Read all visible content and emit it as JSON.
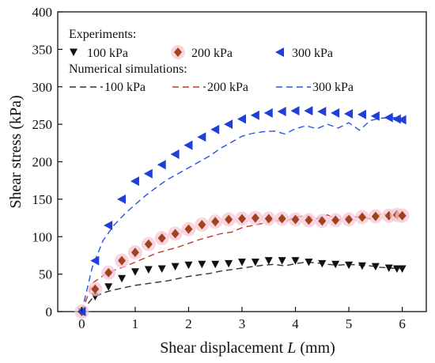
{
  "chart_data": {
    "type": "scatter",
    "xlabel_prefix": "Shear displacement ",
    "xlabel_var": "L",
    "xlabel_suffix": " (mm)",
    "ylabel": "Shear stress (kPa)",
    "xlim": [
      -0.45,
      6.45
    ],
    "ylim": [
      0,
      400
    ],
    "xticks": [
      0,
      1,
      2,
      3,
      4,
      5,
      6
    ],
    "yticks": [
      0,
      50,
      100,
      150,
      200,
      250,
      300,
      350,
      400
    ],
    "grid": false,
    "legend": {
      "placement": "top-left",
      "experiments_header": "Experiments:",
      "simulations_header": "Numerical simulations:"
    },
    "experiments": [
      {
        "name": "100 kPa",
        "marker": "triangle-down",
        "color": "#111111",
        "x": [
          0,
          0.25,
          0.5,
          0.75,
          1.0,
          1.25,
          1.5,
          1.75,
          2.0,
          2.25,
          2.5,
          2.75,
          3.0,
          3.25,
          3.5,
          3.75,
          4.0,
          4.25,
          4.5,
          4.75,
          5.0,
          5.25,
          5.5,
          5.75,
          5.9,
          6.0
        ],
        "y": [
          0,
          20,
          33,
          44,
          53,
          56,
          57,
          60,
          62,
          63,
          63,
          64,
          66,
          66,
          68,
          68,
          68,
          66,
          64,
          63,
          62,
          61,
          60,
          58,
          57,
          57
        ]
      },
      {
        "name": "200 kPa",
        "marker": "diamond",
        "color": "#a0421e",
        "x": [
          0,
          0.25,
          0.5,
          0.75,
          1.0,
          1.25,
          1.5,
          1.75,
          2.0,
          2.25,
          2.5,
          2.75,
          3.0,
          3.25,
          3.5,
          3.75,
          4.0,
          4.25,
          4.5,
          4.75,
          5.0,
          5.25,
          5.5,
          5.75,
          5.9,
          6.0
        ],
        "y": [
          0,
          30,
          52,
          68,
          79,
          90,
          98,
          104,
          110,
          116,
          120,
          123,
          124,
          125,
          124,
          124,
          123,
          122,
          121,
          122,
          123,
          126,
          127,
          128,
          129,
          128
        ]
      },
      {
        "name": "300 kPa",
        "marker": "triangle-left",
        "color": "#1f3fd6",
        "x": [
          0,
          0.25,
          0.5,
          0.75,
          1.0,
          1.25,
          1.5,
          1.75,
          2.0,
          2.25,
          2.5,
          2.75,
          3.0,
          3.25,
          3.5,
          3.75,
          4.0,
          4.25,
          4.5,
          4.75,
          5.0,
          5.25,
          5.5,
          5.75,
          5.9,
          6.0
        ],
        "y": [
          0,
          68,
          115,
          150,
          174,
          184,
          196,
          210,
          222,
          233,
          243,
          250,
          257,
          262,
          265,
          267,
          268,
          268,
          267,
          265,
          264,
          263,
          261,
          259,
          257,
          256
        ]
      }
    ],
    "simulations": [
      {
        "name": "100 kPa",
        "color": "#333333",
        "x": [
          0,
          0.2,
          0.4,
          0.6,
          0.8,
          1.0,
          1.2,
          1.4,
          1.6,
          1.8,
          2.0,
          2.2,
          2.4,
          2.6,
          2.8,
          3.0,
          3.2,
          3.4,
          3.6,
          3.8,
          4.0,
          4.2,
          4.4,
          4.6,
          4.8,
          5.0,
          5.2,
          5.4,
          5.6,
          5.8,
          6.0
        ],
        "y": [
          0,
          18,
          25,
          29,
          32,
          35,
          37,
          39,
          41,
          44,
          47,
          49,
          51,
          54,
          56,
          58,
          60,
          62,
          63,
          61,
          64,
          66,
          65,
          63,
          62,
          63,
          62,
          61,
          59,
          58,
          57
        ]
      },
      {
        "name": "200 kPa",
        "color": "#c0392b",
        "x": [
          0,
          0.2,
          0.4,
          0.6,
          0.8,
          1.0,
          1.2,
          1.4,
          1.6,
          1.8,
          2.0,
          2.2,
          2.4,
          2.6,
          2.8,
          3.0,
          3.2,
          3.4,
          3.6,
          3.8,
          4.0,
          4.2,
          4.4,
          4.6,
          4.8,
          5.0,
          5.2,
          5.4,
          5.6,
          5.8,
          6.0
        ],
        "y": [
          0,
          38,
          48,
          55,
          60,
          66,
          72,
          78,
          82,
          86,
          91,
          96,
          100,
          104,
          106,
          112,
          115,
          118,
          122,
          120,
          126,
          128,
          124,
          129,
          122,
          127,
          126,
          124,
          130,
          129,
          128
        ]
      },
      {
        "name": "300 kPa",
        "color": "#2a55e0",
        "x": [
          0,
          0.2,
          0.4,
          0.6,
          0.8,
          1.0,
          1.2,
          1.4,
          1.6,
          1.8,
          2.0,
          2.2,
          2.4,
          2.6,
          2.8,
          3.0,
          3.2,
          3.4,
          3.6,
          3.8,
          4.0,
          4.2,
          4.4,
          4.6,
          4.8,
          5.0,
          5.2,
          5.4,
          5.6,
          5.8,
          6.0
        ],
        "y": [
          0,
          60,
          95,
          115,
          130,
          143,
          155,
          166,
          176,
          184,
          192,
          200,
          208,
          218,
          226,
          234,
          238,
          240,
          241,
          237,
          244,
          248,
          244,
          250,
          245,
          252,
          242,
          255,
          258,
          259,
          258
        ]
      }
    ]
  }
}
